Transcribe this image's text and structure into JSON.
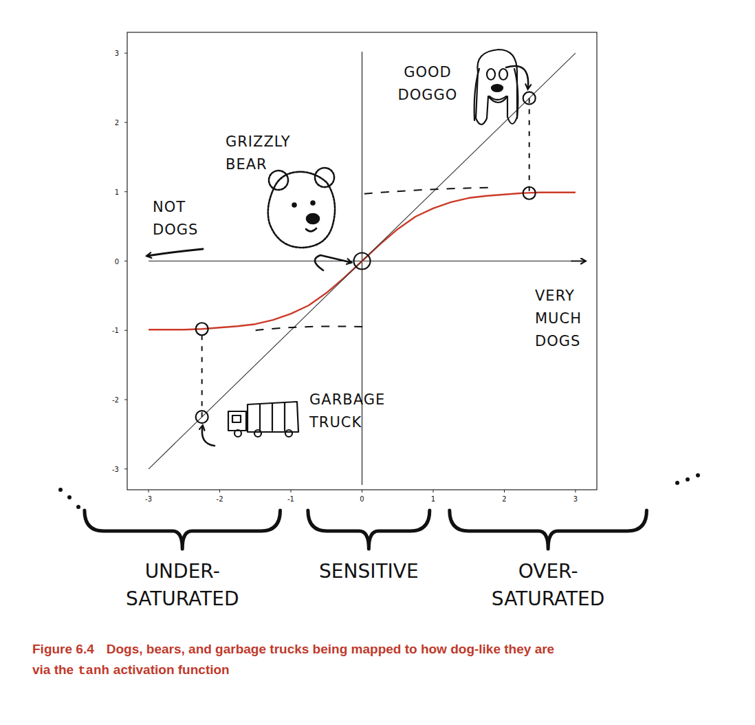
{
  "chart_data": {
    "type": "line",
    "xlim": [
      -3.3,
      3.3
    ],
    "ylim": [
      -3.3,
      3.3
    ],
    "xticks": [
      -3,
      -2,
      -1,
      0,
      1,
      2,
      3
    ],
    "yticks": [
      -3,
      -2,
      -1,
      0,
      1,
      2,
      3
    ],
    "grid": false,
    "series": [
      {
        "type": "line",
        "color": "#cc3a28",
        "x": [
          -3,
          -2.75,
          -2.5,
          -2.25,
          -2,
          -1.75,
          -1.5,
          -1.25,
          -1,
          -0.75,
          -0.5,
          -0.25,
          0,
          0.25,
          0.5,
          0.75,
          1,
          1.25,
          1.5,
          1.75,
          2,
          2.25,
          2.5,
          2.75,
          3
        ],
        "values": [
          -0.99,
          -0.99,
          -0.99,
          -0.98,
          -0.96,
          -0.94,
          -0.91,
          -0.85,
          -0.76,
          -0.64,
          -0.46,
          -0.24,
          0,
          0.24,
          0.46,
          0.64,
          0.76,
          0.85,
          0.91,
          0.94,
          0.96,
          0.98,
          0.99,
          0.99,
          0.99
        ]
      },
      {
        "type": "line",
        "color": "#333333",
        "x": [
          -3,
          3
        ],
        "values": [
          -3,
          3
        ]
      },
      {
        "type": "scatter",
        "marker": "circle",
        "color": "#111111",
        "x": [
          2.35,
          2.35,
          0,
          -2.25,
          -2.25
        ],
        "values": [
          2.35,
          0.98,
          0,
          -2.25,
          -0.98
        ]
      }
    ],
    "annotations": [
      {
        "text": [
          "GOOD",
          "DOGGO"
        ]
      },
      {
        "text": [
          "GRIZZLY",
          "BEAR"
        ]
      },
      {
        "text": [
          "NOT",
          "DOGS"
        ]
      },
      {
        "text": [
          "VERY",
          "MUCH",
          "DOGS"
        ]
      },
      {
        "text": [
          "GARBAGE",
          "TRUCK"
        ]
      }
    ],
    "regions": [
      {
        "label": [
          "UNDER-",
          "SATURATED"
        ],
        "from": -3.9,
        "to": -1.15
      },
      {
        "label": [
          "SENSITIVE"
        ],
        "from": -0.76,
        "to": 0.95
      },
      {
        "label": [
          "OVER-",
          "SATURATED"
        ],
        "from": 1.23,
        "to": 4.0
      }
    ]
  },
  "caption": {
    "number": "Figure 6.4",
    "lines": [
      "Dogs, bears, and garbage trucks being mapped to how dog-like they are",
      "via the"
    ],
    "code": "tanh",
    "end": "activation function"
  }
}
